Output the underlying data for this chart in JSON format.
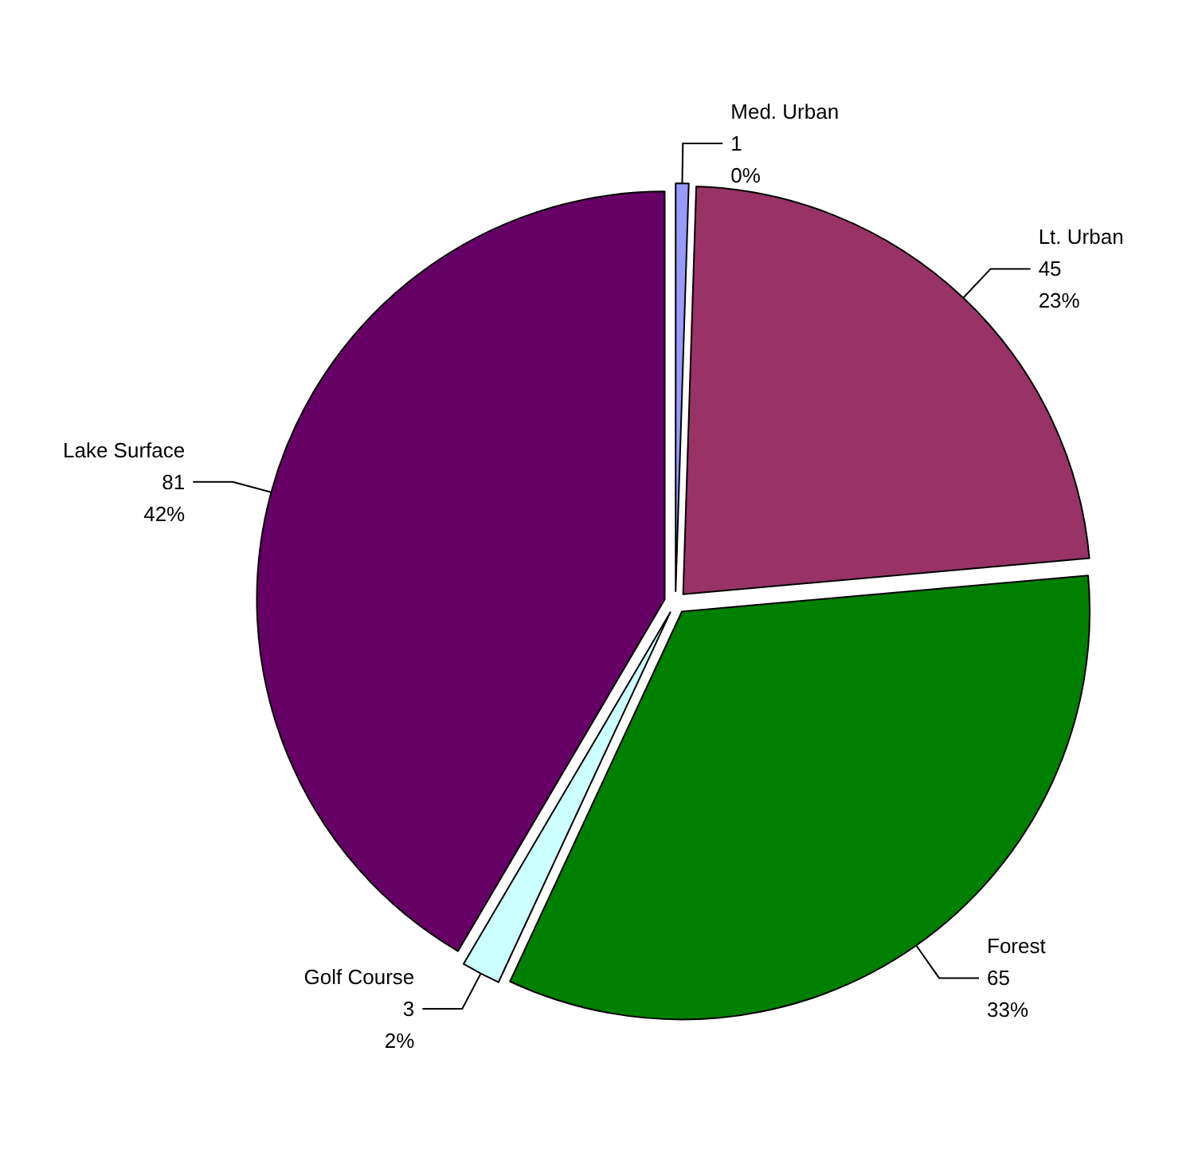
{
  "chart_data": {
    "type": "pie",
    "categories": [
      "Med. Urban",
      "Lt. Urban",
      "Forest",
      "Golf Course",
      "Lake Surface"
    ],
    "values": [
      1,
      45,
      65,
      3,
      81
    ],
    "colors": [
      "#9999ff",
      "#993366",
      "#008000",
      "#ccffff",
      "#660066"
    ],
    "value_labels": [
      "1\n0%",
      "45\n23%",
      "65\n33%",
      "3\n2%",
      "81\n42%"
    ]
  }
}
